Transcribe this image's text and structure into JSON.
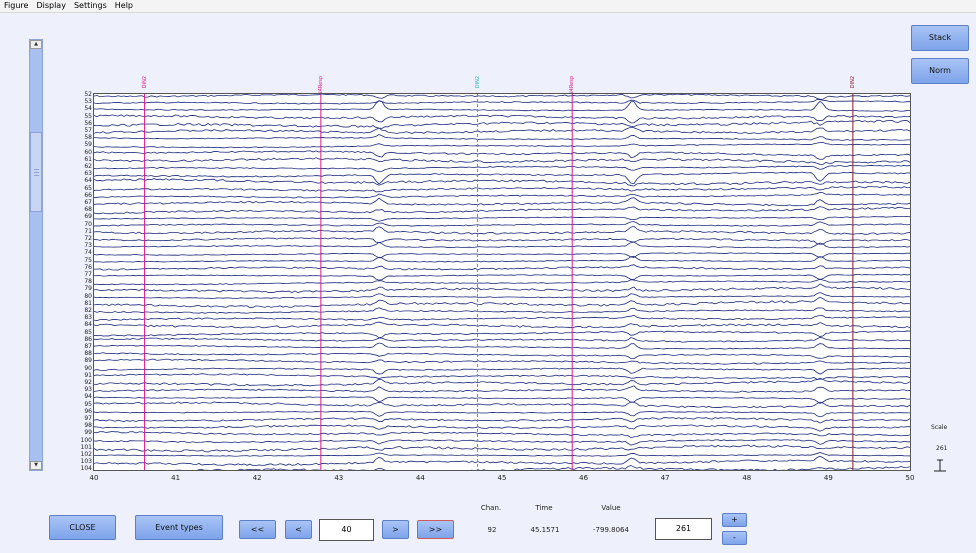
{
  "menu": [
    "Figure",
    "Display",
    "Settings",
    "Help"
  ],
  "side_buttons": {
    "stack": "Stack",
    "norm": "Norm"
  },
  "channels": [
    "52",
    "53",
    "54",
    "55",
    "56",
    "57",
    "58",
    "59",
    "60",
    "61",
    "62",
    "63",
    "64",
    "65",
    "66",
    "67",
    "68",
    "69",
    "70",
    "71",
    "72",
    "73",
    "74",
    "75",
    "76",
    "77",
    "78",
    "79",
    "80",
    "81",
    "82",
    "83",
    "84",
    "85",
    "86",
    "87",
    "88",
    "89",
    "90",
    "91",
    "92",
    "93",
    "94",
    "95",
    "96",
    "97",
    "98",
    "99",
    "100",
    "101",
    "102",
    "103",
    "104"
  ],
  "x_axis": {
    "ticks": [
      "40",
      "41",
      "42",
      "43",
      "44",
      "45",
      "46",
      "47",
      "48",
      "49",
      "50"
    ],
    "min": 40,
    "max": 50
  },
  "events": [
    {
      "time": 40.62,
      "label": "DIN2",
      "color": "#e0148c"
    },
    {
      "time": 42.78,
      "label": "DIN4Resp",
      "color": "#e0148c"
    },
    {
      "time": 44.7,
      "label": "DIN2",
      "color": "#20b4b4"
    },
    {
      "time": 45.86,
      "label": "DIN4Resp",
      "color": "#e0148c"
    },
    {
      "time": 49.3,
      "label": "DIN2",
      "color": "#8c1420"
    }
  ],
  "trace_color": "#1c2a7c",
  "spike_times": [
    43.5,
    46.6,
    48.9
  ],
  "controls": {
    "close": "CLOSE",
    "event_types": "Event types",
    "prev_page": "<<",
    "prev": "<",
    "time_field": "40",
    "next": ">",
    "next_page": ">>",
    "scale_field": "261",
    "plus": "+",
    "minus": "-"
  },
  "readout": {
    "chan_label": "Chan.",
    "chan_value": "92",
    "time_label": "Time",
    "time_value": "45.1571",
    "value_label": "Value",
    "value_value": "-799.8064"
  },
  "scale": {
    "label": "Scale",
    "value": "261"
  }
}
